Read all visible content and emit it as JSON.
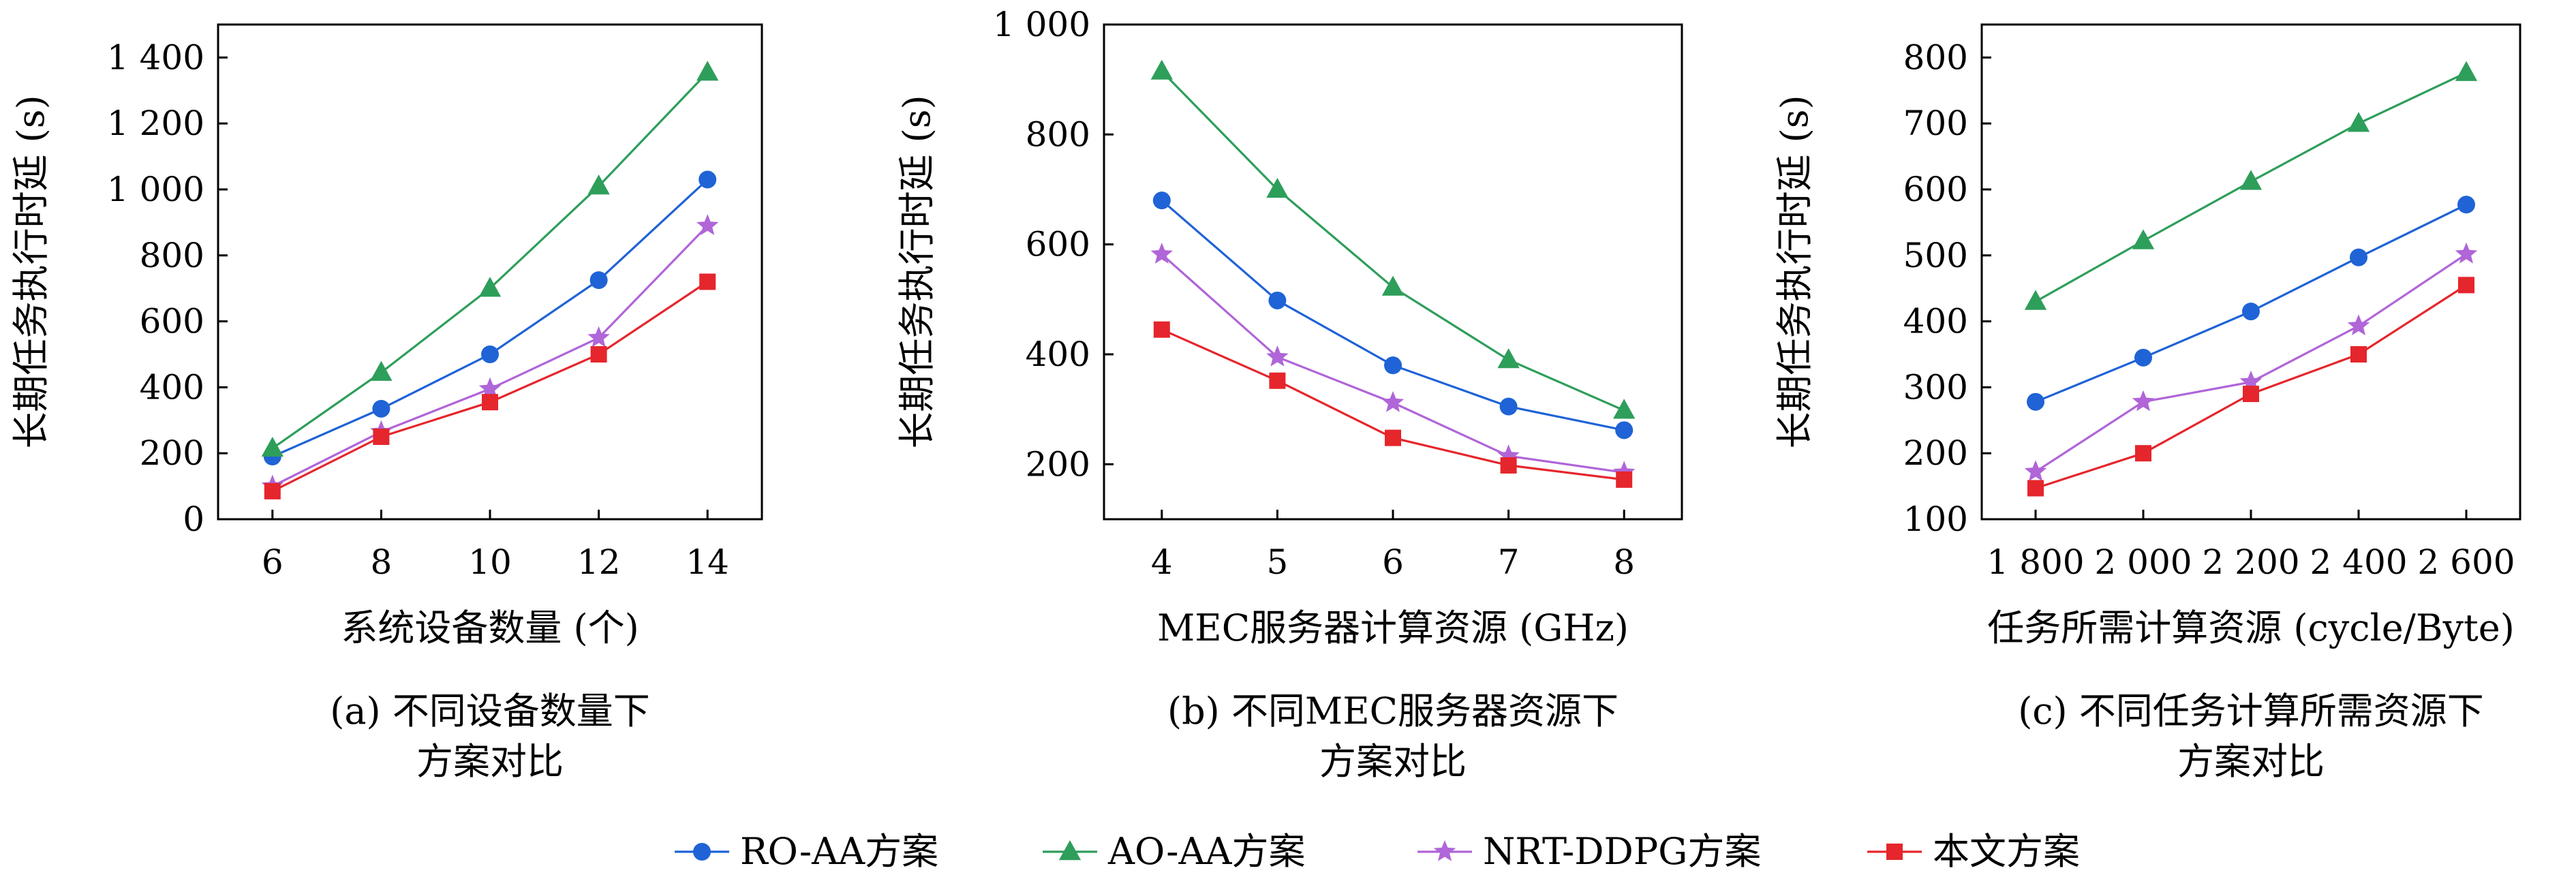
{
  "figure": {
    "legend": [
      {
        "label": "RO-AA方案",
        "color": "#1f63d6",
        "marker": "circle"
      },
      {
        "label": "AO-AA方案",
        "color": "#2e9e5b",
        "marker": "triangle"
      },
      {
        "label": "NRT-DDPG方案",
        "color": "#b065d8",
        "marker": "star"
      },
      {
        "label": "本文方案",
        "color": "#e5262c",
        "marker": "square"
      }
    ]
  },
  "chart_data": [
    {
      "type": "line",
      "xlabel": "系统设备数量 (个)",
      "ylabel": "长期任务执行时延 (s)",
      "caption_line1": "(a) 不同设备数量下",
      "caption_line2": "方案对比",
      "x": [
        6,
        8,
        10,
        12,
        14
      ],
      "x_ticks": [
        "6",
        "8",
        "10",
        "12",
        "14"
      ],
      "xlim": [
        5,
        15
      ],
      "ylim": [
        0,
        1500
      ],
      "y_ticks": [
        0,
        200,
        400,
        600,
        800,
        1000,
        1200,
        1400
      ],
      "y_tick_labels": [
        "0",
        "200",
        "400",
        "600",
        "800",
        "1 000",
        "1 200",
        "1 400"
      ],
      "series": [
        {
          "name": "RO-AA方案",
          "values": [
            190,
            335,
            500,
            725,
            1030
          ]
        },
        {
          "name": "AO-AA方案",
          "values": [
            215,
            445,
            700,
            1010,
            1355
          ]
        },
        {
          "name": "NRT-DDPG方案",
          "values": [
            100,
            265,
            395,
            550,
            890
          ]
        },
        {
          "name": "本文方案",
          "values": [
            85,
            250,
            355,
            500,
            720
          ]
        }
      ]
    },
    {
      "type": "line",
      "xlabel": "MEC服务器计算资源 (GHz)",
      "ylabel": "长期任务执行时延 (s)",
      "caption_line1": "(b) 不同MEC服务器资源下",
      "caption_line2": "方案对比",
      "x": [
        4,
        5,
        6,
        7,
        8
      ],
      "x_ticks": [
        "4",
        "5",
        "6",
        "7",
        "8"
      ],
      "xlim": [
        3.5,
        8.5
      ],
      "ylim": [
        100,
        1000
      ],
      "y_ticks": [
        200,
        400,
        600,
        800,
        1000
      ],
      "y_tick_labels": [
        "200",
        "400",
        "600",
        "800",
        "1 000"
      ],
      "series": [
        {
          "name": "RO-AA方案",
          "values": [
            680,
            498,
            380,
            305,
            262
          ]
        },
        {
          "name": "AO-AA方案",
          "values": [
            915,
            700,
            522,
            390,
            298
          ]
        },
        {
          "name": "NRT-DDPG方案",
          "values": [
            582,
            395,
            312,
            215,
            185
          ]
        },
        {
          "name": "本文方案",
          "values": [
            445,
            352,
            248,
            198,
            172
          ]
        }
      ]
    },
    {
      "type": "line",
      "xlabel": "任务所需计算资源 (cycle/Byte)",
      "ylabel": "长期任务执行时延 (s)",
      "caption_line1": "(c) 不同任务计算所需资源下",
      "caption_line2": "方案对比",
      "x": [
        1800,
        2000,
        2200,
        2400,
        2600
      ],
      "x_ticks": [
        "1 800",
        "2 000",
        "2 200",
        "2 400",
        "2 600"
      ],
      "xlim": [
        1700,
        2700
      ],
      "ylim": [
        100,
        850
      ],
      "y_ticks": [
        100,
        200,
        300,
        400,
        500,
        600,
        700,
        800
      ],
      "y_tick_labels": [
        "100",
        "200",
        "300",
        "400",
        "500",
        "600",
        "700",
        "800"
      ],
      "series": [
        {
          "name": "RO-AA方案",
          "values": [
            278,
            345,
            415,
            497,
            577
          ]
        },
        {
          "name": "AO-AA方案",
          "values": [
            430,
            522,
            612,
            700,
            777
          ]
        },
        {
          "name": "NRT-DDPG方案",
          "values": [
            172,
            278,
            308,
            393,
            502
          ]
        },
        {
          "name": "本文方案",
          "values": [
            147,
            200,
            290,
            350,
            455
          ]
        }
      ]
    }
  ]
}
